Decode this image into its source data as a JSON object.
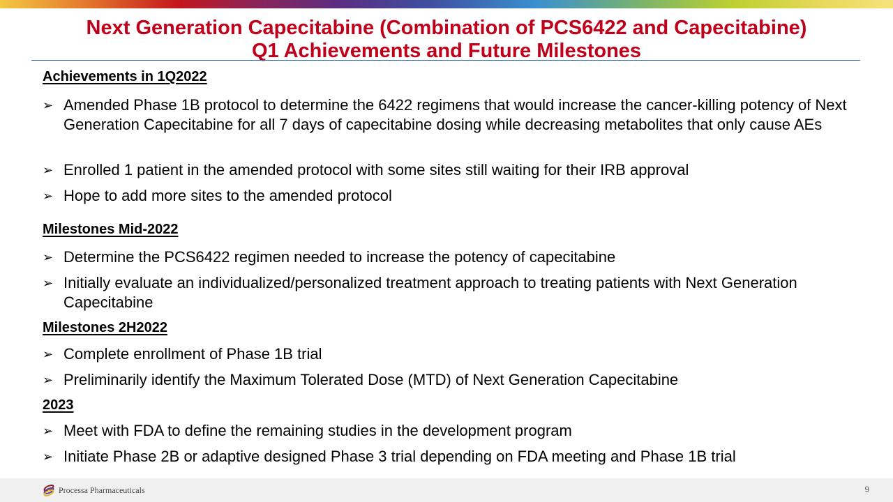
{
  "title": {
    "line1": "Next Generation Capecitabine (Combination of PCS6422 and Capecitabine)",
    "line2": "Q1 Achievements and Future Milestones"
  },
  "sections": [
    {
      "heading": "Achievements in 1Q2022",
      "bullets": [
        "Amended Phase 1B protocol to determine the 6422 regimens that would increase the cancer-killing potency of Next Generation Capecitabine for all 7 days of capecitabine dosing while decreasing metabolites that only cause AEs",
        "Enrolled 1 patient in the amended protocol with some sites still waiting for their IRB approval",
        "Hope to add more sites to the amended protocol"
      ]
    },
    {
      "heading": "Milestones Mid-2022",
      "bullets": [
        "Determine the PCS6422 regimen needed to increase the potency of capecitabine",
        "Initially evaluate an individualized/personalized treatment approach to treating patients with Next Generation Capecitabine"
      ]
    },
    {
      "heading": "Milestones 2H2022",
      "bullets": [
        "Complete enrollment of Phase 1B trial",
        "Preliminarily identify the Maximum Tolerated Dose (MTD) of Next Generation Capecitabine"
      ]
    },
    {
      "heading": "2023",
      "bullets": [
        "Meet with FDA to define the remaining studies in the development program",
        "Initiate Phase 2B or adaptive designed Phase 3 trial depending on FDA meeting and Phase 1B trial"
      ]
    }
  ],
  "bullet_glyph": "➢",
  "footer": {
    "company": "Processa Pharmaceuticals",
    "page": "9"
  },
  "colors": {
    "title": "#c0001a",
    "rule": "#2e6db4"
  }
}
